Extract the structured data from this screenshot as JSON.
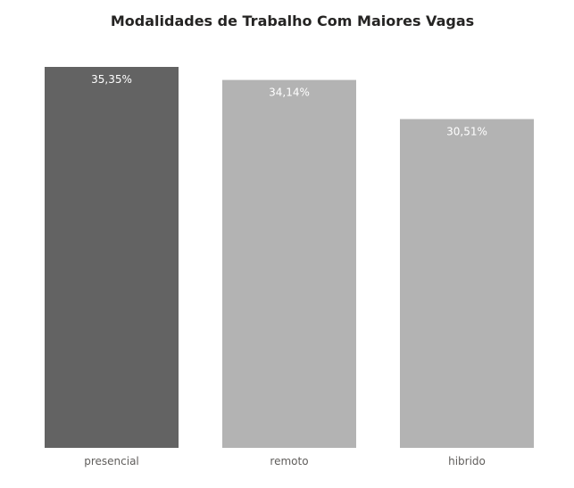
{
  "chart_data": {
    "type": "bar",
    "title": "Modalidades de Trabalho Com Maiores Vagas",
    "categories": [
      "presencial",
      "remoto",
      "hibrido"
    ],
    "values": [
      35.35,
      34.14,
      30.51
    ],
    "data_labels": [
      "35,35%",
      "34,14%",
      "30,51%"
    ],
    "highlighted_index": 0,
    "xlabel": "",
    "ylabel": "",
    "ylim": [
      0,
      35.35
    ],
    "grid": false,
    "legend": "none"
  },
  "colors": {
    "highlight": "#636363",
    "default": "#b3b3b3",
    "title": "#252423",
    "axis_text": "#605e5c",
    "data_label": "#ffffff"
  }
}
